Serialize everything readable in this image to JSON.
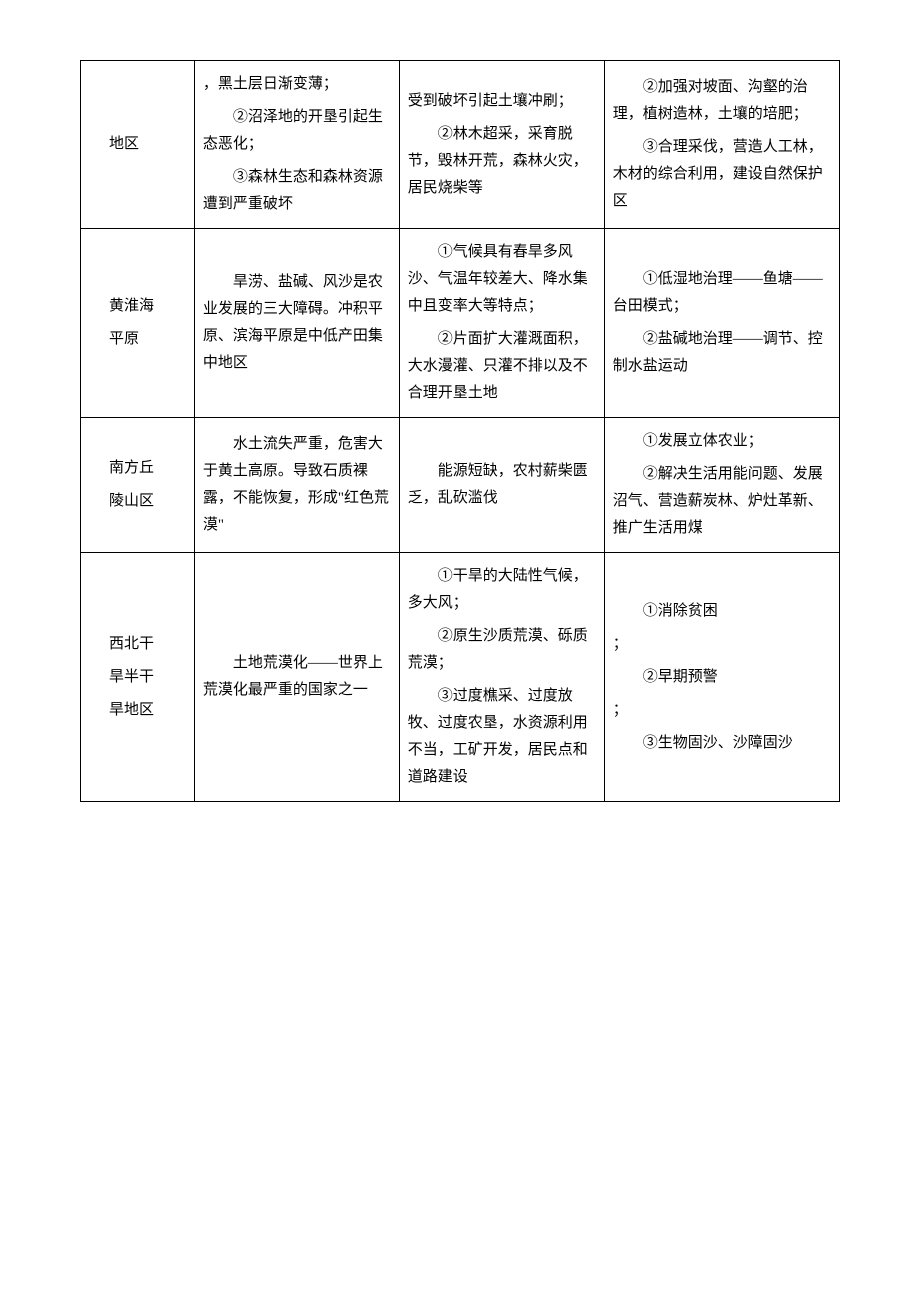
{
  "table": {
    "rows": [
      {
        "region": [
          "地区"
        ],
        "col2": [
          "，黑土层日渐变薄；",
          "②沼泽地的开垦引起生态恶化；",
          "③森林生态和森林资源遭到严重破坏"
        ],
        "col2_first_no_indent": true,
        "col3": [
          "受到破坏引起土壤冲刷；",
          "②林木超采，采育脱节，毁林开荒，森林火灾，居民烧柴等"
        ],
        "col3_first_no_indent": true,
        "col4": [
          "②加强对坡面、沟壑的治理，植树造林，土壤的培肥；",
          "③合理采伐，营造人工林，木材的综合利用，建设自然保护区"
        ]
      },
      {
        "region": [
          "黄淮海",
          "平原"
        ],
        "col2": [
          "旱涝、盐碱、风沙是农业发展的三大障碍。冲积平原、滨海平原是中低产田集中地区"
        ],
        "col3": [
          "①气候具有春旱多风沙、气温年较差大、降水集中且变率大等特点；",
          "②片面扩大灌溉面积，大水漫灌、只灌不排以及不合理开垦土地"
        ],
        "col4": [
          "①低湿地治理——鱼塘——台田模式；",
          "②盐碱地治理——调节、控制水盐运动"
        ]
      },
      {
        "region": [
          "南方丘",
          "陵山区"
        ],
        "col2": [
          "水土流失严重，危害大于黄土高原。导致石质裸露，不能恢复，形成\"红色荒漠\""
        ],
        "col3": [
          "能源短缺，农村薪柴匮乏，乱砍滥伐"
        ],
        "col4": [
          "①发展立体农业；",
          "②解决生活用能问题、发展沼气、营造薪炭林、炉灶革新、推广生活用煤"
        ]
      },
      {
        "region": [
          "西北干",
          "旱半干",
          "旱地区"
        ],
        "col2": [
          "土地荒漠化——世界上荒漠化最严重的国家之一"
        ],
        "col3": [
          "①干旱的大陆性气候，多大风；",
          "②原生沙质荒漠、砾质荒漠；",
          "③过度樵采、过度放牧、过度农垦，水资源利用不当，工矿开发，居民点和道路建设"
        ],
        "col4": [
          "①消除贫困；",
          "②早期预警；",
          "③生物固沙、沙障固沙"
        ],
        "col4_no_indent_items": [
          0,
          1
        ]
      }
    ]
  }
}
